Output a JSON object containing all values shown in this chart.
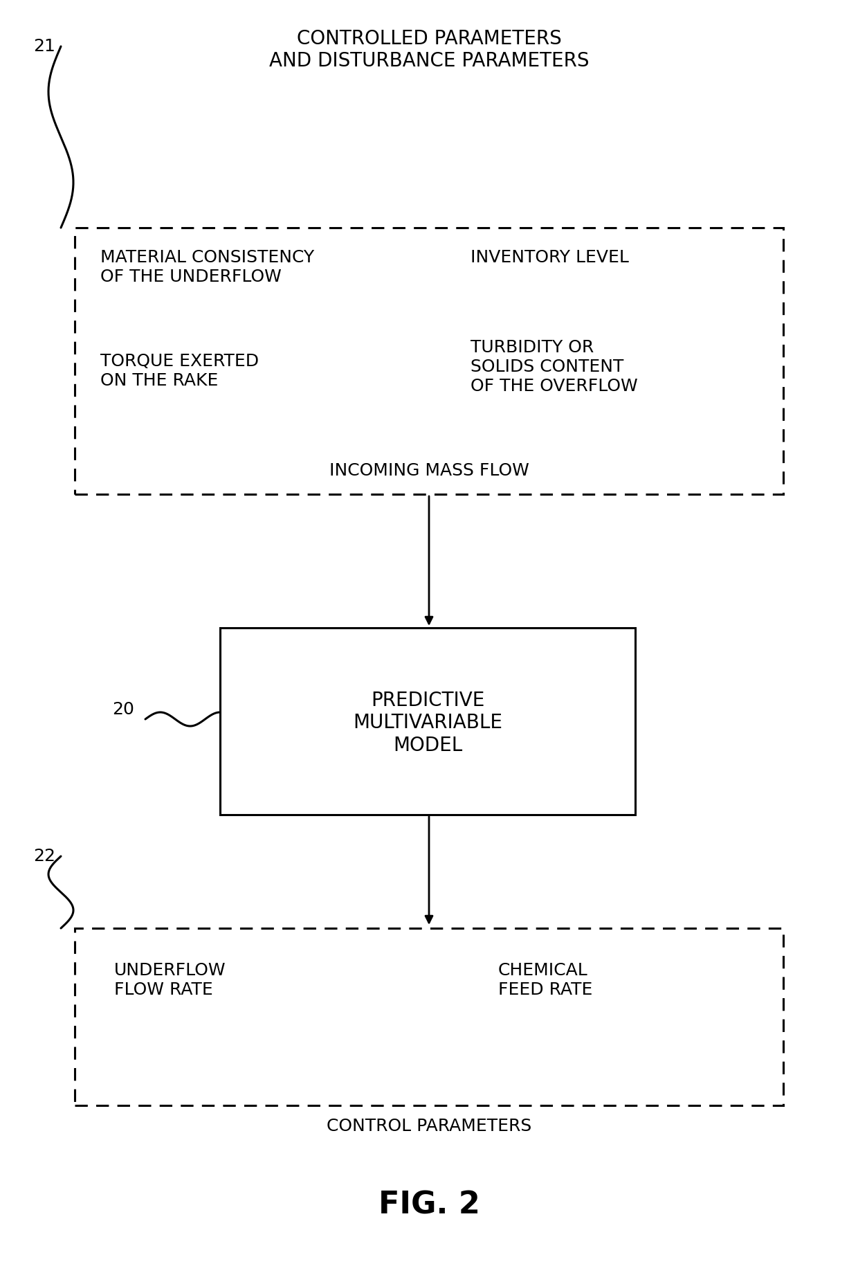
{
  "bg_color": "#ffffff",
  "title_label": "CONTROLLED PARAMETERS\nAND DISTURBANCE PARAMETERS",
  "label_21": "21",
  "label_20": "20",
  "label_22": "22",
  "fig_label": "FIG. 2",
  "box1_left_top": "MATERIAL CONSISTENCY\nOF THE UNDERFLOW",
  "box1_left_bot": "TORQUE EXERTED\nON THE RAKE",
  "box1_right_top": "INVENTORY LEVEL",
  "box1_right_bot": "TURBIDITY OR\nSOLIDS CONTENT\nOF THE OVERFLOW",
  "box1_bottom_text": "INCOMING MASS FLOW",
  "model_box_text": "PREDICTIVE\nMULTIVARIABLE\nMODEL",
  "box3_left": "UNDERFLOW\nFLOW RATE",
  "box3_right": "CHEMICAL\nFEED RATE",
  "box3_bottom_text": "CONTROL PARAMETERS",
  "text_color": "#000000",
  "box_edge_color": "#000000",
  "font_size_title": 20,
  "font_size_content": 18,
  "font_size_label_num": 18,
  "font_size_fig": 32
}
